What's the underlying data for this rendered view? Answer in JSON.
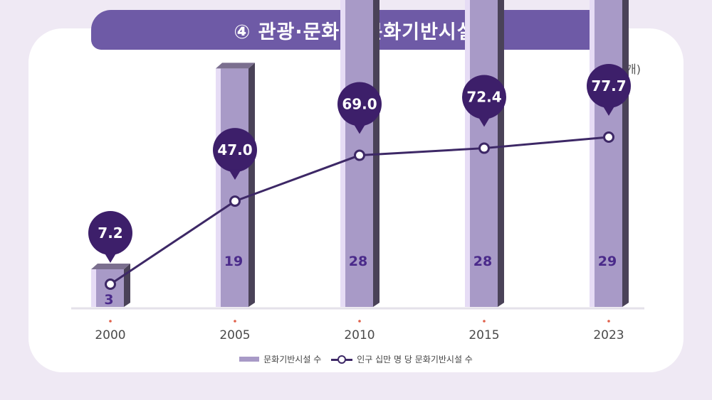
{
  "title": "④ 관광·문화 – 문화기반시설",
  "unit": "(단위: 개)",
  "colors": {
    "bar_face": "#a89ac7",
    "bar_light": "#e6dcf5",
    "bar_side": "#4a4258",
    "bar_top": "#7b6f8f",
    "line": "#3d2866",
    "bubble": "#3d1f6a",
    "bar_label": "#4a2a8a",
    "axis_tick_dot": "#e0604a"
  },
  "chart_data": {
    "type": "bar",
    "categories": [
      "2000",
      "2005",
      "2010",
      "2015",
      "2023"
    ],
    "series": [
      {
        "name": "문화기반시설 수",
        "type": "bar",
        "values": [
          3,
          19,
          28,
          28,
          29
        ]
      },
      {
        "name": "인구 십만 명 당 문화기반시설 수",
        "type": "line",
        "values": [
          7.2,
          47.0,
          69.0,
          72.4,
          77.7
        ],
        "labels": [
          "7.2",
          "47.0",
          "69.0",
          "72.4",
          "77.7"
        ]
      }
    ],
    "legend_position": "bottom",
    "grid": false
  }
}
